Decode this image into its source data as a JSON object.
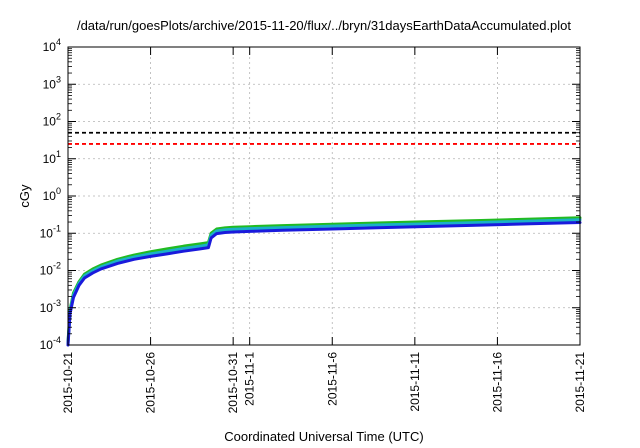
{
  "chart_data": {
    "type": "line",
    "title": "/data/run/goesPlots/archive/2015-11-20/flux/../bryn/31daysEarthDataAccumulated.plot",
    "xlabel": "Coordinated Universal Time (UTC)",
    "ylabel": "cGy",
    "x_scale": "time",
    "y_scale": "log",
    "xlim": [
      "2015-10-21",
      "2015-11-21"
    ],
    "ylim": [
      0.0001,
      10000
    ],
    "grid": true,
    "legend": "none",
    "x_ticks": [
      {
        "date": "2015-10-21",
        "label": "2015-10-21"
      },
      {
        "date": "2015-10-26",
        "label": "2015-10-26"
      },
      {
        "date": "2015-10-31",
        "label": "2015-10-31"
      },
      {
        "date": "2015-11-01",
        "label": "2015-11-1"
      },
      {
        "date": "2015-11-06",
        "label": "2015-11-6"
      },
      {
        "date": "2015-11-11",
        "label": "2015-11-11"
      },
      {
        "date": "2015-11-16",
        "label": "2015-11-16"
      },
      {
        "date": "2015-11-21",
        "label": "2015-11-21"
      }
    ],
    "y_ticks": [
      {
        "value": 0.0001,
        "base": "10",
        "exp": "-4"
      },
      {
        "value": 0.001,
        "base": "10",
        "exp": "-3"
      },
      {
        "value": 0.01,
        "base": "10",
        "exp": "-2"
      },
      {
        "value": 0.1,
        "base": "10",
        "exp": "-1"
      },
      {
        "value": 1,
        "base": "10",
        "exp": "0"
      },
      {
        "value": 10,
        "base": "10",
        "exp": "1"
      },
      {
        "value": 100,
        "base": "10",
        "exp": "2"
      },
      {
        "value": 1000,
        "base": "10",
        "exp": "3"
      },
      {
        "value": 10000,
        "base": "10",
        "exp": "4"
      }
    ],
    "thresholds": [
      {
        "value": 50,
        "color": "#000000",
        "style": "dashed"
      },
      {
        "value": 25,
        "color": "#ff0000",
        "style": "dashed"
      }
    ],
    "series": [
      {
        "color": "#22bb22",
        "x": [
          "2015-10-21T00:00",
          "2015-10-21T03:00",
          "2015-10-21T08:00",
          "2015-10-21T16:00",
          "2015-10-22T00:00",
          "2015-10-22T12:00",
          "2015-10-23T00:00",
          "2015-10-24T00:00",
          "2015-10-25T00:00",
          "2015-10-26T00:00",
          "2015-10-27T00:00",
          "2015-10-28T00:00",
          "2015-10-29T00:00",
          "2015-10-29T12:00",
          "2015-10-29T16:00",
          "2015-10-30T00:00",
          "2015-10-30T12:00",
          "2015-10-31T00:00",
          "2015-11-01T00:00",
          "2015-11-03T00:00",
          "2015-11-06T00:00",
          "2015-11-09T00:00",
          "2015-11-12T00:00",
          "2015-11-15T00:00",
          "2015-11-18T00:00",
          "2015-11-21T00:00"
        ],
        "y": [
          0.00012,
          0.0009,
          0.0025,
          0.005,
          0.008,
          0.011,
          0.014,
          0.02,
          0.026,
          0.032,
          0.038,
          0.045,
          0.052,
          0.056,
          0.1,
          0.13,
          0.14,
          0.145,
          0.15,
          0.16,
          0.175,
          0.19,
          0.205,
          0.22,
          0.24,
          0.26
        ]
      },
      {
        "color": "#1ab0c8",
        "x": [
          "2015-10-21T00:00",
          "2015-10-21T03:00",
          "2015-10-21T08:00",
          "2015-10-21T16:00",
          "2015-10-22T00:00",
          "2015-10-22T12:00",
          "2015-10-23T00:00",
          "2015-10-24T00:00",
          "2015-10-25T00:00",
          "2015-10-26T00:00",
          "2015-10-27T00:00",
          "2015-10-28T00:00",
          "2015-10-29T00:00",
          "2015-10-29T12:00",
          "2015-10-29T16:00",
          "2015-10-30T00:00",
          "2015-10-30T12:00",
          "2015-10-31T00:00",
          "2015-11-01T00:00",
          "2015-11-03T00:00",
          "2015-11-06T00:00",
          "2015-11-09T00:00",
          "2015-11-12T00:00",
          "2015-11-15T00:00",
          "2015-11-18T00:00",
          "2015-11-21T00:00"
        ],
        "y": [
          0.00011,
          0.0008,
          0.0022,
          0.0045,
          0.0072,
          0.0098,
          0.0125,
          0.018,
          0.023,
          0.028,
          0.033,
          0.039,
          0.045,
          0.049,
          0.088,
          0.115,
          0.124,
          0.128,
          0.133,
          0.142,
          0.155,
          0.168,
          0.18,
          0.195,
          0.212,
          0.23
        ]
      },
      {
        "color": "#1a1adc",
        "x": [
          "2015-10-21T00:00",
          "2015-10-21T03:00",
          "2015-10-21T08:00",
          "2015-10-21T16:00",
          "2015-10-22T00:00",
          "2015-10-22T12:00",
          "2015-10-23T00:00",
          "2015-10-24T00:00",
          "2015-10-25T00:00",
          "2015-10-26T00:00",
          "2015-10-27T00:00",
          "2015-10-28T00:00",
          "2015-10-29T00:00",
          "2015-10-29T12:00",
          "2015-10-29T16:00",
          "2015-10-30T00:00",
          "2015-10-30T12:00",
          "2015-10-31T00:00",
          "2015-11-01T00:00",
          "2015-11-03T00:00",
          "2015-11-06T00:00",
          "2015-11-09T00:00",
          "2015-11-12T00:00",
          "2015-11-15T00:00",
          "2015-11-18T00:00",
          "2015-11-21T00:00"
        ],
        "y": [
          0.0001,
          0.0007,
          0.0019,
          0.004,
          0.0063,
          0.0086,
          0.011,
          0.0155,
          0.02,
          0.024,
          0.028,
          0.033,
          0.038,
          0.041,
          0.075,
          0.098,
          0.105,
          0.108,
          0.112,
          0.12,
          0.13,
          0.142,
          0.153,
          0.165,
          0.18,
          0.195
        ]
      }
    ]
  }
}
